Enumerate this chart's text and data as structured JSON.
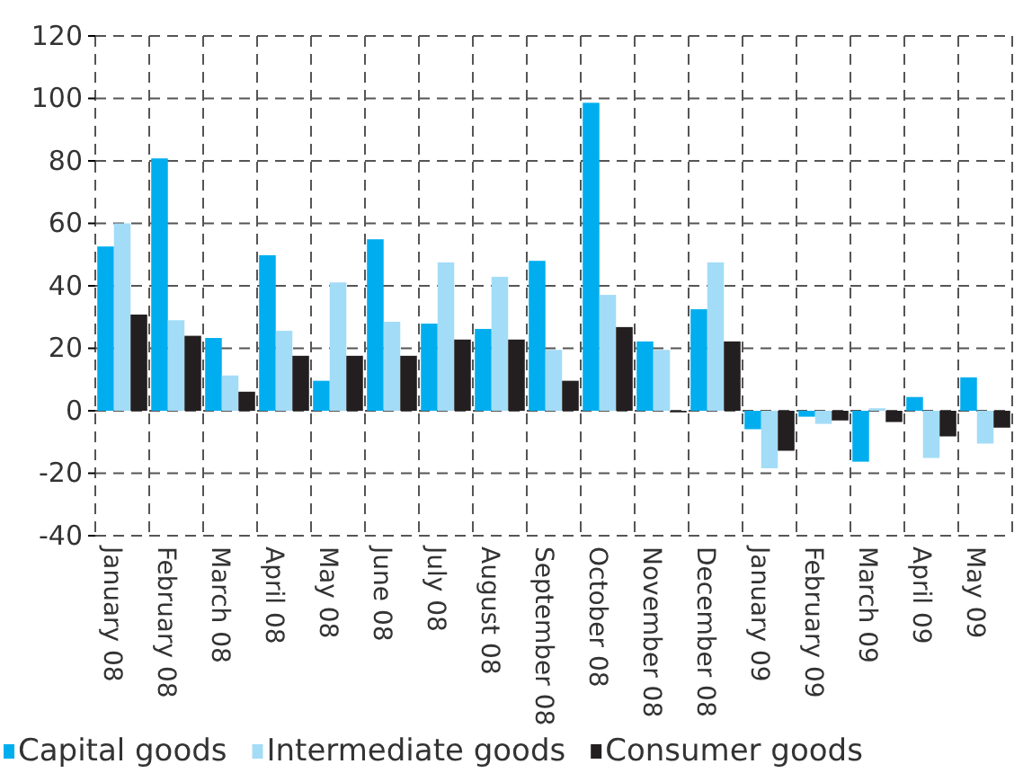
{
  "chart_data": {
    "type": "bar",
    "categories": [
      "January 08",
      "February 08",
      "March 08",
      "April 08",
      "May 08",
      "June 08",
      "July 08",
      "August 08",
      "September 08",
      "October 08",
      "November 08",
      "December 08",
      "January 09",
      "February 09",
      "March 09",
      "April 09",
      "May 09"
    ],
    "series": [
      {
        "name": "Capital goods",
        "color": "#00aeef",
        "values": [
          52.6,
          80.8,
          23.3,
          49.8,
          9.6,
          54.9,
          27.9,
          26.2,
          48,
          98.6,
          22.2,
          32.5,
          -5.9,
          -1.9,
          -16.3,
          4.4,
          10.7
        ]
      },
      {
        "name": "Intermediate goods",
        "color": "#a3dcf7",
        "values": [
          60,
          29,
          11.3,
          25.6,
          41.1,
          28.5,
          47.5,
          42.9,
          19.5,
          37.1,
          19.5,
          47.5,
          -18.4,
          -4.2,
          0.8,
          -15.1,
          -10.5
        ]
      },
      {
        "name": "Consumer goods",
        "color": "#231f20",
        "values": [
          30.8,
          24,
          6.1,
          17.6,
          17.6,
          17.6,
          22.8,
          22.8,
          9.6,
          26.8,
          -0.5,
          22.2,
          -12.8,
          -3.1,
          -3.6,
          -8.2,
          -5.4
        ]
      }
    ],
    "ylim": [
      -40,
      120
    ],
    "yticks": [
      -40,
      -20,
      0,
      20,
      40,
      60,
      80,
      100,
      120
    ],
    "grid": true,
    "legend": "bottom",
    "marker": "square"
  }
}
